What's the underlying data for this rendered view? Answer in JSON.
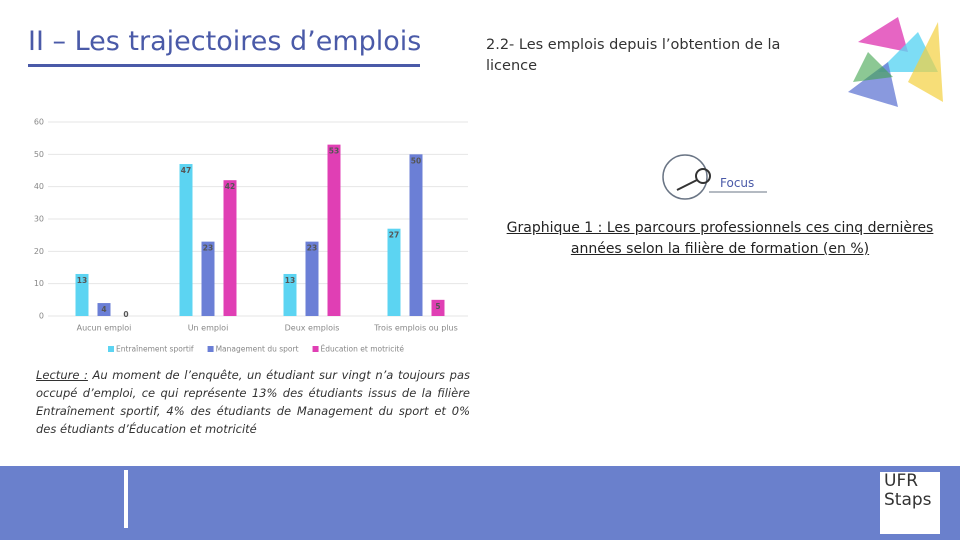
{
  "header": {
    "title": "II – Les trajectoires d’emplois",
    "subtitle": "2.2- Les emplois depuis l’obtention de la licence"
  },
  "focus": "Focus",
  "caption": "Graphique 1 : Les parcours professionnels ces cinq dernières années selon la filière de formation (en %)",
  "lecture": {
    "label": "Lecture :",
    "text": "Au moment de l’enquête, un étudiant sur vingt n’a toujours pas occupé d’emploi, ce qui représente 13% des étudiants issus de la filière Entraînement sportif, 4% des étudiants de Management du sport et 0% des étudiants d’Éducation et motricité"
  },
  "logo": {
    "line1": "UFR",
    "line2": "Staps"
  },
  "chart_data": {
    "type": "bar",
    "categories": [
      "Aucun emploi",
      "Un emploi",
      "Deux emplois",
      "Trois emplois ou plus"
    ],
    "series": [
      {
        "name": "Entraînement sportif",
        "color": "#5cd4f2",
        "values": [
          13,
          47,
          13,
          27
        ]
      },
      {
        "name": "Management du sport",
        "color": "#6b7fd6",
        "values": [
          4,
          23,
          23,
          50
        ]
      },
      {
        "name": "Éducation et motricité",
        "color": "#e03fb4",
        "values": [
          0,
          42,
          53,
          5
        ]
      }
    ],
    "ylim": [
      0,
      60
    ],
    "yticks": [
      0,
      10,
      20,
      30,
      40,
      50,
      60
    ],
    "grid": true,
    "legend": "bottom"
  }
}
